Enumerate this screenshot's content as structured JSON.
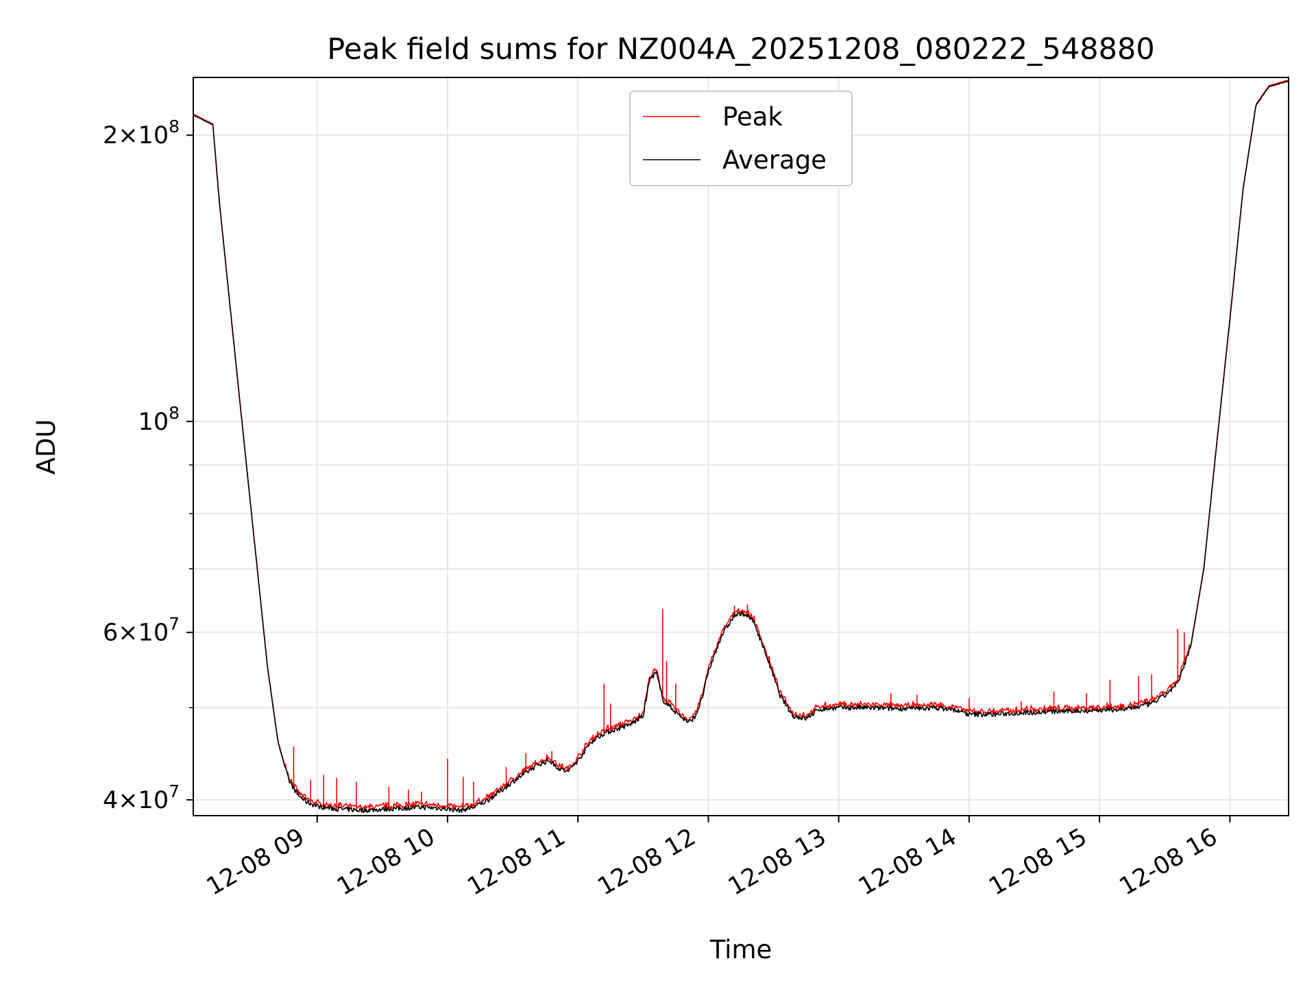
{
  "chart_data": {
    "type": "line",
    "title": "Peak field sums for NZ004A_20251208_080222_548880",
    "xlabel": "Time",
    "ylabel": "ADU",
    "yscale": "log",
    "xlim_hours": [
      8.05,
      16.45
    ],
    "ylim": [
      38500000,
      230000000
    ],
    "grid": true,
    "x_ticks": [
      {
        "hour": 9,
        "label": "12-08 09"
      },
      {
        "hour": 10,
        "label": "12-08 10"
      },
      {
        "hour": 11,
        "label": "12-08 11"
      },
      {
        "hour": 12,
        "label": "12-08 12"
      },
      {
        "hour": 13,
        "label": "12-08 13"
      },
      {
        "hour": 14,
        "label": "12-08 14"
      },
      {
        "hour": 15,
        "label": "12-08 15"
      },
      {
        "hour": 16,
        "label": "12-08 16"
      }
    ],
    "y_ticks": [
      {
        "value": 40000000,
        "base": "4",
        "exp": "7"
      },
      {
        "value": 60000000,
        "base": "6",
        "exp": "7"
      },
      {
        "value": 100000000,
        "base": "",
        "exp": "8"
      },
      {
        "value": 200000000,
        "base": "2",
        "exp": "8"
      }
    ],
    "y_minor_ticks": [
      50000000,
      70000000,
      80000000,
      90000000
    ],
    "legend": {
      "placement": "upper center",
      "entries": [
        {
          "name": "Peak",
          "color": "#ff0000"
        },
        {
          "name": "Average",
          "color": "#000000"
        }
      ]
    },
    "series": [
      {
        "name": "Average",
        "color": "#000000",
        "x_hours": [
          8.05,
          8.2,
          8.25,
          8.35,
          8.45,
          8.55,
          8.62,
          8.7,
          8.78,
          8.85,
          8.92,
          9.0,
          9.1,
          9.2,
          9.35,
          9.5,
          9.65,
          9.8,
          9.95,
          10.1,
          10.2,
          10.3,
          10.4,
          10.5,
          10.6,
          10.7,
          10.78,
          10.85,
          10.92,
          11.0,
          11.1,
          11.2,
          11.3,
          11.4,
          11.5,
          11.55,
          11.6,
          11.65,
          11.7,
          11.75,
          11.8,
          11.85,
          11.9,
          11.95,
          12.0,
          12.1,
          12.2,
          12.28,
          12.35,
          12.45,
          12.55,
          12.65,
          12.75,
          12.85,
          13.0,
          13.2,
          13.4,
          13.6,
          13.75,
          13.9,
          14.0,
          14.2,
          14.4,
          14.6,
          14.8,
          15.0,
          15.2,
          15.4,
          15.5,
          15.6,
          15.7,
          15.8,
          15.9,
          16.0,
          16.1,
          16.2,
          16.3,
          16.45
        ],
        "y": [
          210000000,
          205000000,
          170000000,
          125000000,
          92000000,
          68000000,
          55000000,
          46000000,
          42000000,
          40500000,
          39800000,
          39400000,
          39200000,
          39100000,
          39000000,
          39100000,
          39200000,
          39300000,
          39200000,
          39000000,
          39300000,
          39900000,
          40800000,
          41800000,
          42700000,
          43600000,
          44000000,
          43200000,
          42800000,
          44000000,
          46000000,
          47000000,
          47500000,
          48000000,
          49000000,
          53500000,
          54500000,
          51000000,
          50200000,
          49500000,
          48800000,
          48200000,
          49000000,
          51000000,
          54500000,
          59500000,
          62500000,
          62800000,
          61500000,
          56500000,
          51500000,
          49000000,
          48700000,
          49800000,
          50000000,
          50000000,
          49900000,
          49900000,
          50000000,
          49700000,
          49200000,
          49200000,
          49400000,
          49500000,
          49600000,
          49700000,
          49800000,
          50500000,
          51500000,
          53000000,
          58000000,
          70000000,
          95000000,
          128000000,
          175000000,
          215000000,
          225000000,
          228000000
        ]
      },
      {
        "name": "Peak",
        "color": "#ff0000",
        "spikes": [
          {
            "hour": 8.82,
            "value": 45500000
          },
          {
            "hour": 8.95,
            "value": 42000000
          },
          {
            "hour": 9.05,
            "value": 42500000
          },
          {
            "hour": 9.15,
            "value": 42200000
          },
          {
            "hour": 9.3,
            "value": 41800000
          },
          {
            "hour": 9.55,
            "value": 41300000
          },
          {
            "hour": 9.7,
            "value": 41000000
          },
          {
            "hour": 9.8,
            "value": 40800000
          },
          {
            "hour": 10.0,
            "value": 44200000
          },
          {
            "hour": 10.12,
            "value": 42300000
          },
          {
            "hour": 10.2,
            "value": 41800000
          },
          {
            "hour": 10.45,
            "value": 43300000
          },
          {
            "hour": 10.6,
            "value": 44800000
          },
          {
            "hour": 10.8,
            "value": 45000000
          },
          {
            "hour": 11.2,
            "value": 53000000
          },
          {
            "hour": 11.25,
            "value": 50500000
          },
          {
            "hour": 11.65,
            "value": 63500000
          },
          {
            "hour": 11.68,
            "value": 56000000
          },
          {
            "hour": 11.75,
            "value": 53000000
          },
          {
            "hour": 12.2,
            "value": 64000000
          },
          {
            "hour": 12.3,
            "value": 64200000
          },
          {
            "hour": 12.35,
            "value": 62500000
          },
          {
            "hour": 13.4,
            "value": 51800000
          },
          {
            "hour": 13.6,
            "value": 51600000
          },
          {
            "hour": 14.0,
            "value": 51200000
          },
          {
            "hour": 14.4,
            "value": 50800000
          },
          {
            "hour": 14.65,
            "value": 52000000
          },
          {
            "hour": 14.9,
            "value": 51800000
          },
          {
            "hour": 15.08,
            "value": 53500000
          },
          {
            "hour": 15.3,
            "value": 54000000
          },
          {
            "hour": 15.4,
            "value": 54200000
          },
          {
            "hour": 15.6,
            "value": 60500000
          },
          {
            "hour": 15.65,
            "value": 60000000
          }
        ]
      }
    ]
  }
}
